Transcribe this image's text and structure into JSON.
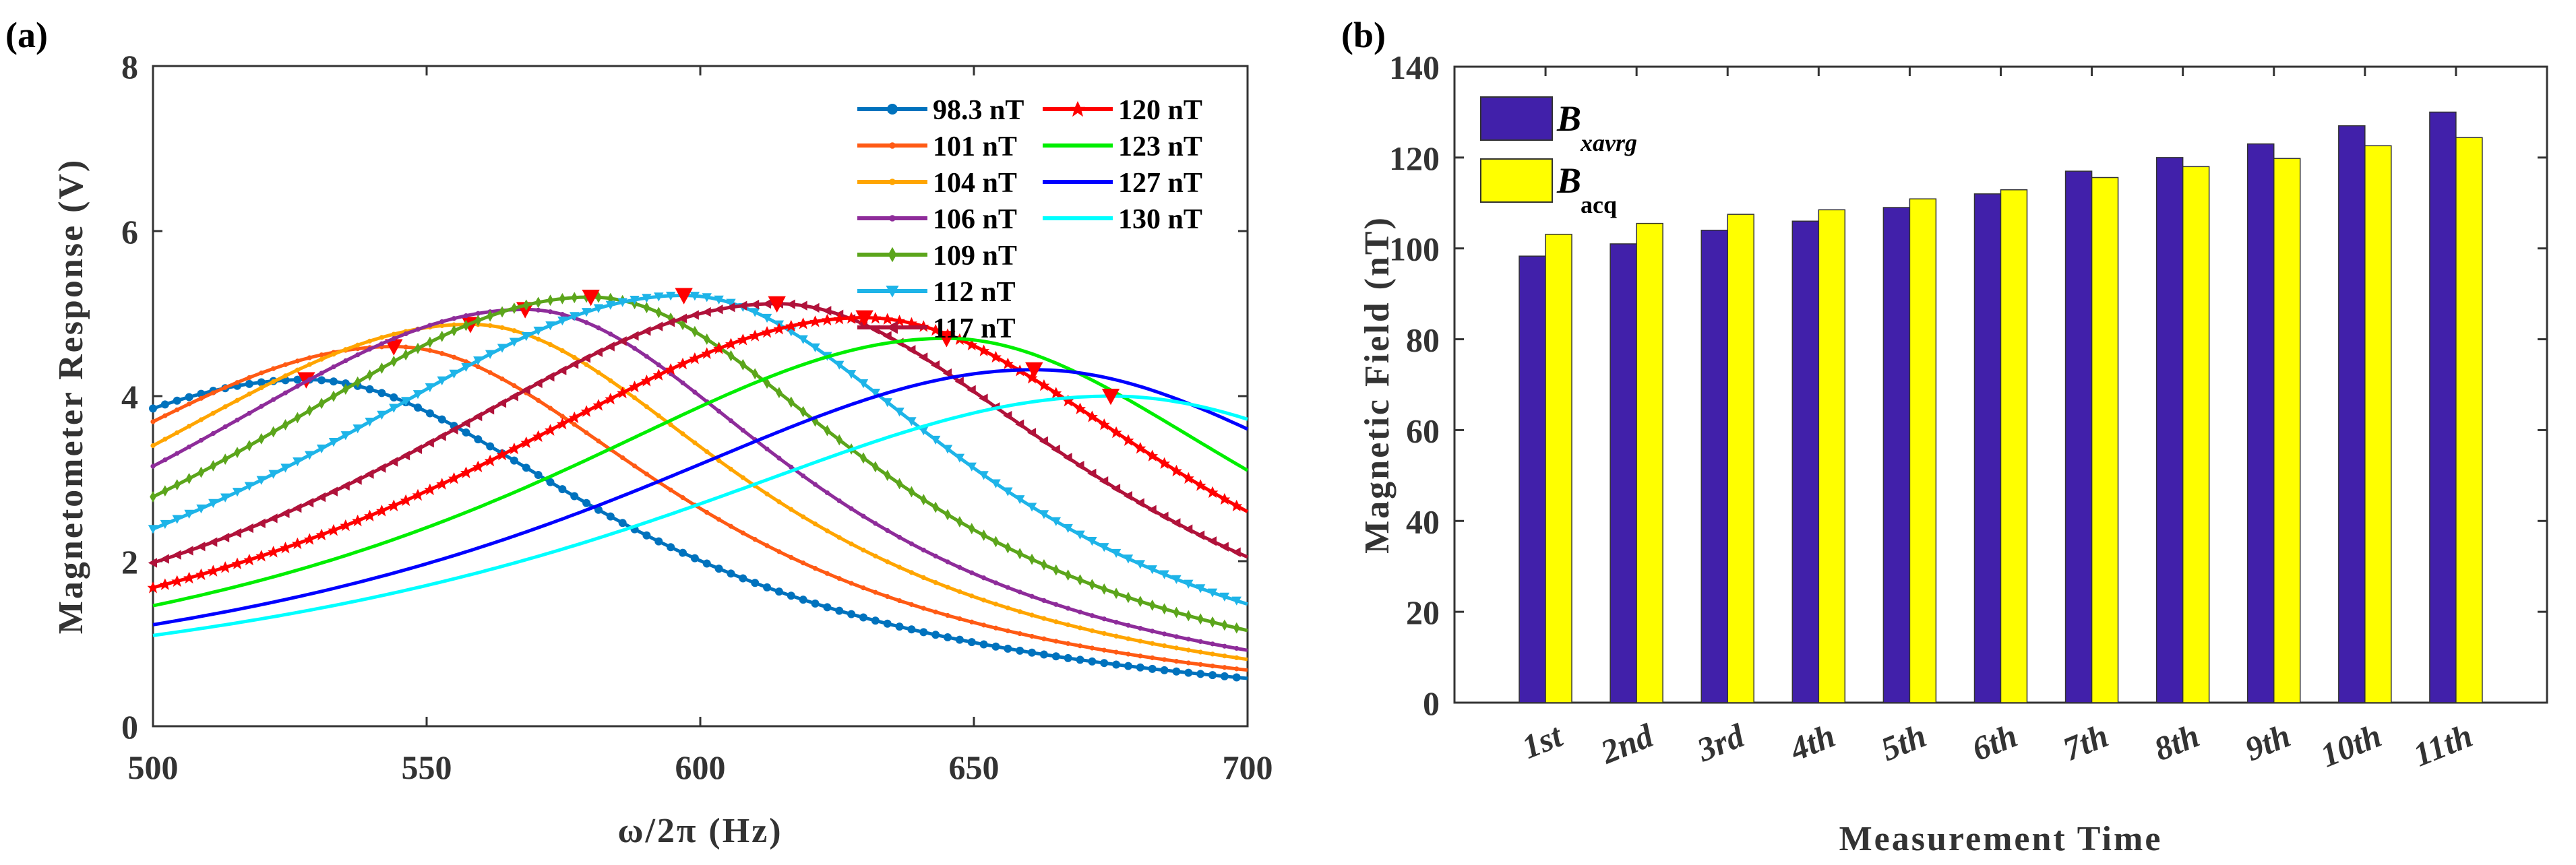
{
  "panels": {
    "a": "(a)",
    "b": "(b)"
  },
  "chart_data": [
    {
      "type": "line",
      "xlabel": "ω/2π (Hz)",
      "ylabel": "Magnetometer Response (V)",
      "xlim": [
        500,
        700
      ],
      "ylim": [
        0,
        8
      ],
      "xticks": [
        "500",
        "550",
        "600",
        "650",
        "700"
      ],
      "yticks": [
        "0",
        "2",
        "4",
        "6",
        "8"
      ],
      "legend_position": "top-right",
      "peak_marker_color": "#FF0000",
      "series": [
        {
          "name": "98.3 nT",
          "color": "#0072BD",
          "marker": "dot",
          "y_at_500": 3.85,
          "peak": [
            528,
            4.2
          ],
          "y_at_700": 0.58
        },
        {
          "name": "101 nT",
          "color": "#FF5A14",
          "marker": "small",
          "y_at_500": 3.69,
          "peak": [
            544,
            4.6
          ],
          "y_at_700": 0.68
        },
        {
          "name": "104 nT",
          "color": "#FFA500",
          "marker": "small",
          "y_at_500": 3.4,
          "peak": [
            558,
            4.87
          ],
          "y_at_700": 0.81
        },
        {
          "name": "106 nT",
          "color": "#8E2C9A",
          "marker": "small",
          "y_at_500": 3.15,
          "peak": [
            568,
            5.05
          ],
          "y_at_700": 0.92
        },
        {
          "name": "109 nT",
          "color": "#5BA51B",
          "marker": "diamond",
          "y_at_500": 2.78,
          "peak": [
            580,
            5.2
          ],
          "y_at_700": 1.16
        },
        {
          "name": "112 nT",
          "color": "#1EB4E8",
          "marker": "tri-down",
          "y_at_500": 2.39,
          "peak": [
            597,
            5.22
          ],
          "y_at_700": 1.48
        },
        {
          "name": "117 nT",
          "color": "#B0123A",
          "marker": "tri-left",
          "y_at_500": 1.98,
          "peak": [
            614,
            5.12
          ],
          "y_at_700": 2.05
        },
        {
          "name": "120 nT",
          "color": "#FF0000",
          "marker": "star",
          "y_at_500": 1.68,
          "peak": [
            630,
            4.95
          ],
          "y_at_700": 2.6
        },
        {
          "name": "123 nT",
          "color": "#00EE00",
          "marker": "none",
          "y_at_500": 1.46,
          "peak": [
            645,
            4.7
          ],
          "y_at_700": 3.1
        },
        {
          "name": "127 nT",
          "color": "#0000FF",
          "marker": "none",
          "y_at_500": 1.23,
          "peak": [
            661,
            4.32
          ],
          "y_at_700": 3.6
        },
        {
          "name": "130 nT",
          "color": "#00FFFF",
          "marker": "none",
          "y_at_500": 1.1,
          "peak": [
            675,
            4.0
          ],
          "y_at_700": 3.72
        }
      ]
    },
    {
      "type": "bar",
      "xlabel": "Measurement Time",
      "ylabel": "Magnetic Field (nT)",
      "ylim": [
        0,
        140
      ],
      "yticks": [
        "0",
        "20",
        "40",
        "60",
        "80",
        "100",
        "120",
        "140"
      ],
      "categories": [
        "1st",
        "2nd",
        "3rd",
        "4th",
        "5th",
        "6th",
        "7th",
        "8th",
        "9th",
        "10th",
        "11th"
      ],
      "legend_position": "top-left",
      "series": [
        {
          "name": "B",
          "subscript": "xavrg",
          "color": "#4120AA",
          "values": [
            98.3,
            101,
            104,
            106,
            109,
            112,
            117,
            120,
            123,
            127,
            130
          ]
        },
        {
          "name": "B",
          "subscript": "acq",
          "color": "#FFFF00",
          "values": [
            103.1,
            105.5,
            107.5,
            108.5,
            110.9,
            112.9,
            115.6,
            118.0,
            119.8,
            122.6,
            124.4
          ]
        }
      ]
    }
  ]
}
